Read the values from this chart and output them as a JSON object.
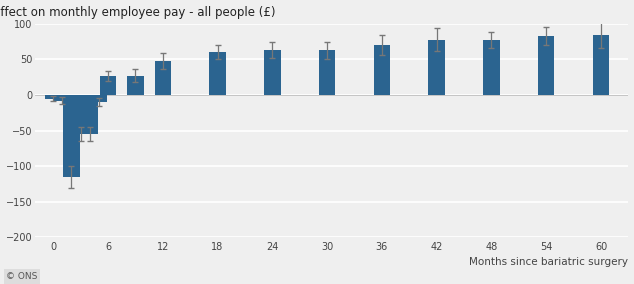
{
  "title": "Effect on monthly employee pay - all people (£)",
  "xlabel": "Months since bariatric surgery",
  "bar_color": "#2b6490",
  "error_color": "#777777",
  "background_color": "#efefef",
  "plot_bg_color": "#efefef",
  "ylim": [
    -200,
    100
  ],
  "yticks": [
    100,
    50,
    0,
    -50,
    -100,
    -150,
    -200
  ],
  "months": [
    0,
    1,
    2,
    3,
    4,
    5,
    6,
    9,
    12,
    18,
    24,
    30,
    36,
    42,
    48,
    54,
    60
  ],
  "values": [
    -5,
    -8,
    -115,
    -55,
    -55,
    -10,
    27,
    27,
    48,
    60,
    63,
    63,
    70,
    78,
    77,
    83,
    84
  ],
  "errors_low": [
    4,
    5,
    15,
    10,
    10,
    6,
    7,
    9,
    11,
    10,
    11,
    12,
    14,
    16,
    11,
    12,
    18
  ],
  "errors_high": [
    4,
    5,
    15,
    10,
    10,
    6,
    7,
    9,
    11,
    10,
    11,
    12,
    14,
    16,
    11,
    12,
    18
  ],
  "xticks": [
    0,
    6,
    12,
    18,
    24,
    30,
    36,
    42,
    48,
    54,
    60
  ],
  "xlim": [
    -2,
    63
  ],
  "bar_width": 1.8,
  "footer_text": "© ONS"
}
